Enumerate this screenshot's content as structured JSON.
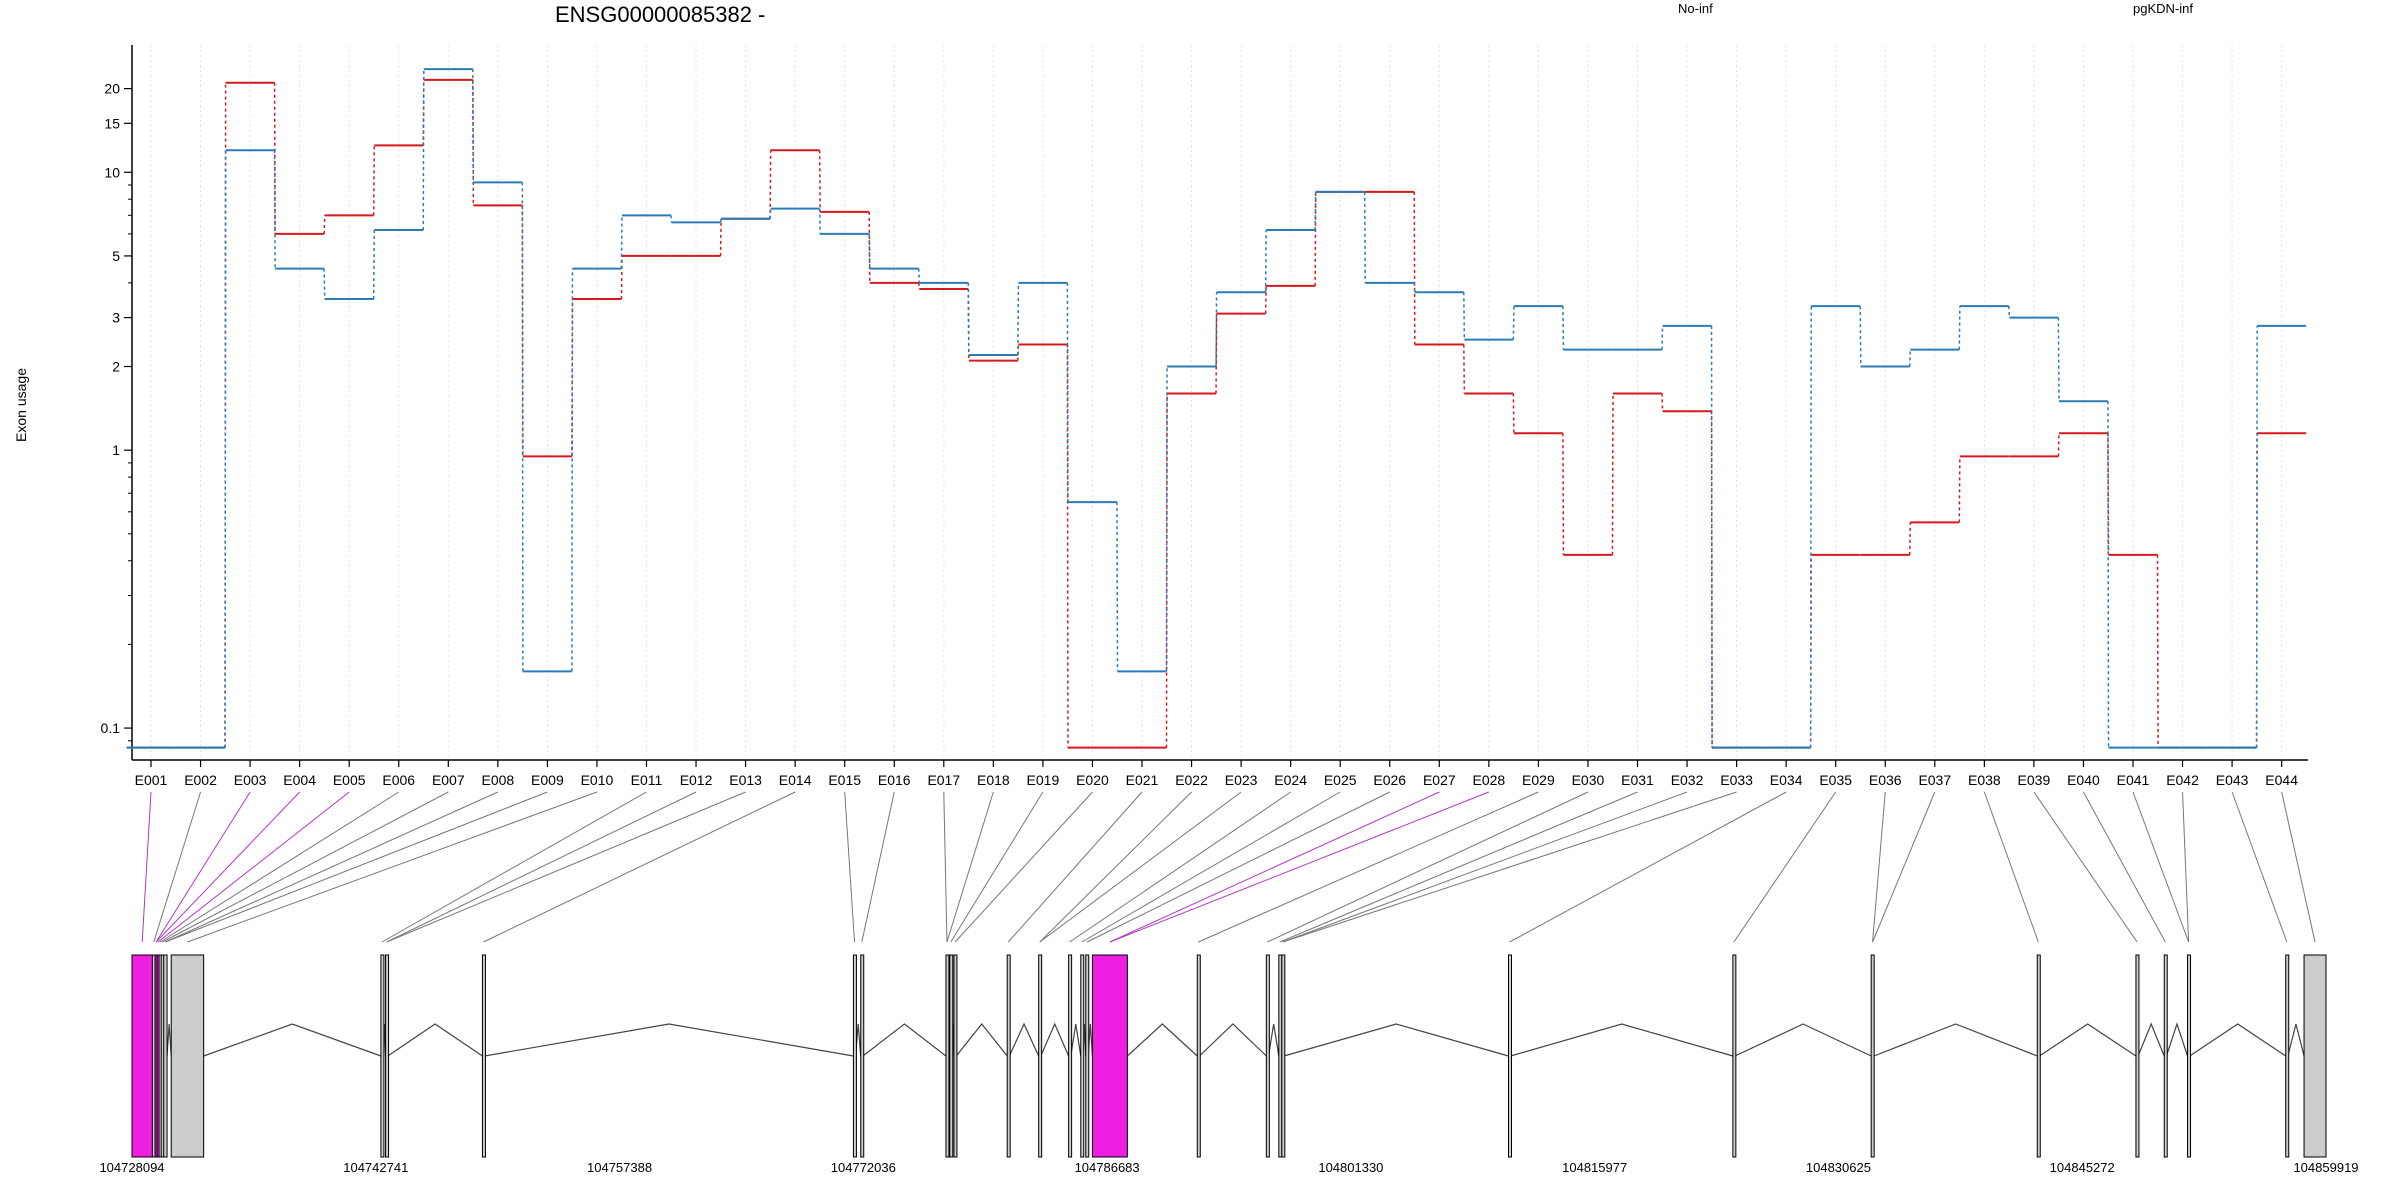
{
  "chart_data": {
    "type": "line",
    "title": "ENSG00000085382 -",
    "ylabel": "Exon usage",
    "xlabel": "",
    "y_scale": "log",
    "ylim": [
      0.08,
      28
    ],
    "grid": "vertical dotted gridlines at each exon",
    "legend": [
      {
        "name": "No-inf",
        "color": "#d7191c"
      },
      {
        "name": "pgKDN-inf",
        "color": "#2c7bb6"
      }
    ],
    "yticks": [
      {
        "value": 0.1,
        "label": "0.1"
      },
      {
        "value": 1,
        "label": "1"
      },
      {
        "value": 2,
        "label": "2"
      },
      {
        "value": 3,
        "label": "3"
      },
      {
        "value": 5,
        "label": "5"
      },
      {
        "value": 10,
        "label": "10"
      },
      {
        "value": 15,
        "label": "15"
      },
      {
        "value": 20,
        "label": "20"
      }
    ],
    "categories": [
      "E001",
      "E002",
      "E003",
      "E004",
      "E005",
      "E006",
      "E007",
      "E008",
      "E009",
      "E010",
      "E011",
      "E012",
      "E013",
      "E014",
      "E015",
      "E016",
      "E017",
      "E018",
      "E019",
      "E020",
      "E021",
      "E022",
      "E023",
      "E024",
      "E025",
      "E026",
      "E027",
      "E028",
      "E029",
      "E030",
      "E031",
      "E032",
      "E033",
      "E034",
      "E035",
      "E036",
      "E037",
      "E038",
      "E039",
      "E040",
      "E041",
      "E042",
      "E043",
      "E044"
    ],
    "series": [
      {
        "name": "No-inf",
        "color": "#d7191c",
        "values": [
          0.085,
          0.085,
          21,
          6,
          7,
          12.5,
          21.5,
          7.6,
          0.95,
          3.5,
          5,
          5,
          6.8,
          12,
          7.2,
          4,
          3.8,
          2.1,
          2.4,
          0.085,
          0.085,
          1.6,
          3.1,
          3.9,
          8.5,
          8.5,
          2.4,
          1.6,
          1.15,
          0.42,
          1.6,
          1.38,
          0.085,
          0.085,
          0.42,
          0.42,
          0.55,
          0.95,
          0.95,
          1.15,
          0.42,
          0.085,
          0.085,
          1.15
        ]
      },
      {
        "name": "pgKDN-inf",
        "color": "#2c7bb6",
        "values": [
          0.085,
          0.085,
          12,
          4.5,
          3.5,
          6.2,
          23.5,
          9.2,
          0.16,
          4.5,
          7,
          6.6,
          6.8,
          7.4,
          6,
          4.5,
          4,
          2.2,
          4,
          0.65,
          0.16,
          2,
          3.7,
          6.2,
          8.5,
          4,
          3.7,
          2.5,
          3.3,
          2.3,
          2.3,
          2.8,
          0.085,
          0.085,
          3.3,
          2,
          2.3,
          3.3,
          3,
          1.5,
          0.085,
          0.085,
          0.085,
          2.8
        ]
      }
    ],
    "gene_model": {
      "coord_labels": [
        "104728094",
        "104742741",
        "104757388",
        "104772036",
        "104786683",
        "104801330",
        "104815977",
        "104830625",
        "104845272",
        "104859919"
      ],
      "coord_range": [
        104728094,
        104859919
      ],
      "highlight_color": "#ee1fe0",
      "exon_color": "#cccccc",
      "exons": [
        {
          "start": 104728094,
          "end": 104729320,
          "highlight": true
        },
        {
          "start": 104729320,
          "end": 104729480,
          "highlight": false
        },
        {
          "start": 104729480,
          "end": 104729600,
          "highlight": true
        },
        {
          "start": 104729600,
          "end": 104729720,
          "highlight": true
        },
        {
          "start": 104729720,
          "end": 104729850,
          "highlight": false
        },
        {
          "start": 104729850,
          "end": 104730000,
          "highlight": false
        },
        {
          "start": 104730000,
          "end": 104730200,
          "highlight": false
        },
        {
          "start": 104730450,
          "end": 104732400,
          "highlight": false
        },
        {
          "start": 104743050,
          "end": 104743180,
          "highlight": false
        },
        {
          "start": 104743330,
          "end": 104743460,
          "highlight": false
        },
        {
          "start": 104749150,
          "end": 104749280,
          "highlight": false
        },
        {
          "start": 104771440,
          "end": 104771570,
          "highlight": false
        },
        {
          "start": 104771880,
          "end": 104772010,
          "highlight": false
        },
        {
          "start": 104777000,
          "end": 104777120,
          "highlight": false
        },
        {
          "start": 104777230,
          "end": 104777350,
          "highlight": false
        },
        {
          "start": 104777480,
          "end": 104777620,
          "highlight": false
        },
        {
          "start": 104780680,
          "end": 104780810,
          "highlight": false
        },
        {
          "start": 104782570,
          "end": 104782700,
          "highlight": false
        },
        {
          "start": 104784370,
          "end": 104784500,
          "highlight": false
        },
        {
          "start": 104785100,
          "end": 104785230,
          "highlight": false
        },
        {
          "start": 104785400,
          "end": 104785550,
          "highlight": false
        },
        {
          "start": 104785800,
          "end": 104787900,
          "highlight": true
        },
        {
          "start": 104792100,
          "end": 104792230,
          "highlight": false
        },
        {
          "start": 104796250,
          "end": 104796380,
          "highlight": false
        },
        {
          "start": 104797000,
          "end": 104797120,
          "highlight": false
        },
        {
          "start": 104797180,
          "end": 104797310,
          "highlight": false
        },
        {
          "start": 104810800,
          "end": 104810930,
          "highlight": false
        },
        {
          "start": 104824280,
          "end": 104824410,
          "highlight": false
        },
        {
          "start": 104832590,
          "end": 104832760,
          "highlight": false
        },
        {
          "start": 104842570,
          "end": 104842700,
          "highlight": false
        },
        {
          "start": 104848500,
          "end": 104848630,
          "highlight": false
        },
        {
          "start": 104850200,
          "end": 104850330,
          "highlight": false
        },
        {
          "start": 104851600,
          "end": 104851730,
          "highlight": false
        },
        {
          "start": 104857500,
          "end": 104857630,
          "highlight": false
        },
        {
          "start": 104858600,
          "end": 104859919,
          "highlight": false
        }
      ]
    }
  }
}
